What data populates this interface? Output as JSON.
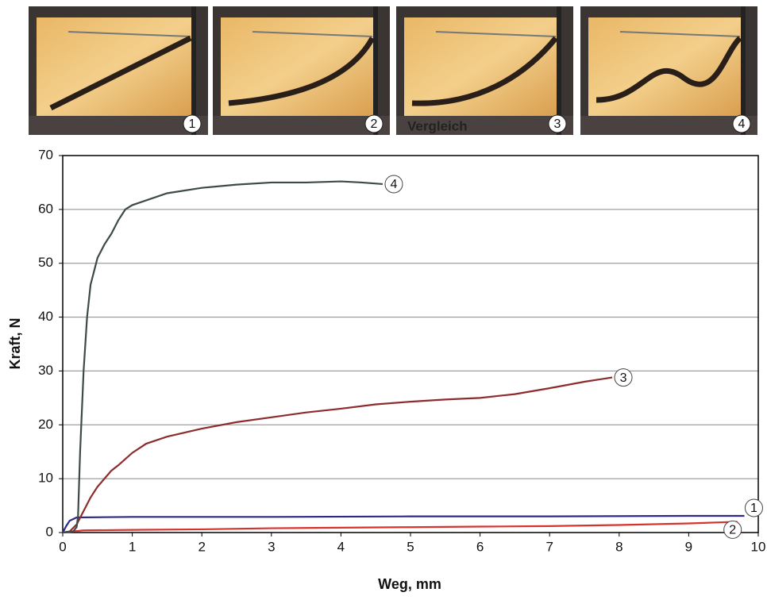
{
  "photos": [
    {
      "label": "1"
    },
    {
      "label": "2"
    },
    {
      "label": "3",
      "caption": "Vergleich"
    },
    {
      "label": "4"
    }
  ],
  "chart_data": {
    "type": "line",
    "xlabel": "Weg, mm",
    "ylabel": "Kraft, N",
    "xlim": [
      0,
      10
    ],
    "ylim": [
      0,
      70
    ],
    "xticks": [
      0,
      1,
      2,
      3,
      4,
      5,
      6,
      7,
      8,
      9,
      10
    ],
    "yticks": [
      0,
      10,
      20,
      30,
      40,
      50,
      60,
      70
    ],
    "grid": true,
    "series": [
      {
        "name": "1",
        "color": "#2b2a86",
        "x": [
          0,
          0.05,
          0.1,
          0.2,
          1,
          3,
          5,
          7,
          9,
          9.8
        ],
        "values": [
          0,
          1.2,
          2.2,
          2.8,
          2.9,
          2.9,
          3,
          3,
          3.1,
          3.1
        ]
      },
      {
        "name": "2",
        "color": "#d8322f",
        "x": [
          0,
          0.3,
          1,
          2,
          3,
          4,
          5,
          6,
          7,
          8,
          9,
          9.7
        ],
        "values": [
          0,
          0.4,
          0.5,
          0.6,
          0.8,
          0.9,
          1,
          1.1,
          1.2,
          1.4,
          1.7,
          2
        ]
      },
      {
        "name": "3",
        "color": "#8e2b2b",
        "x": [
          0,
          0.1,
          0.2,
          0.3,
          0.4,
          0.5,
          0.6,
          0.7,
          0.8,
          1,
          1.2,
          1.5,
          2,
          2.5,
          3,
          3.5,
          4,
          4.5,
          5,
          5.5,
          6,
          6.5,
          7,
          7.5,
          7.9
        ],
        "values": [
          0,
          0.2,
          1.5,
          4,
          6.5,
          8.5,
          10,
          11.5,
          12.5,
          14.8,
          16.5,
          17.8,
          19.3,
          20.5,
          21.4,
          22.3,
          23,
          23.8,
          24.3,
          24.7,
          25,
          25.7,
          26.8,
          28,
          28.8
        ]
      },
      {
        "name": "4",
        "color": "#3d4a48",
        "x": [
          0,
          0.15,
          0.2,
          0.22,
          0.25,
          0.3,
          0.35,
          0.4,
          0.5,
          0.6,
          0.7,
          0.8,
          0.9,
          1,
          1.5,
          2,
          2.5,
          3,
          3.5,
          4,
          4.3,
          4.6
        ],
        "values": [
          0,
          0.2,
          1,
          3,
          15,
          30,
          40,
          46,
          51,
          53.5,
          55.5,
          58,
          60,
          60.8,
          63,
          64,
          64.6,
          65,
          65,
          65.2,
          65,
          64.7
        ]
      }
    ]
  }
}
